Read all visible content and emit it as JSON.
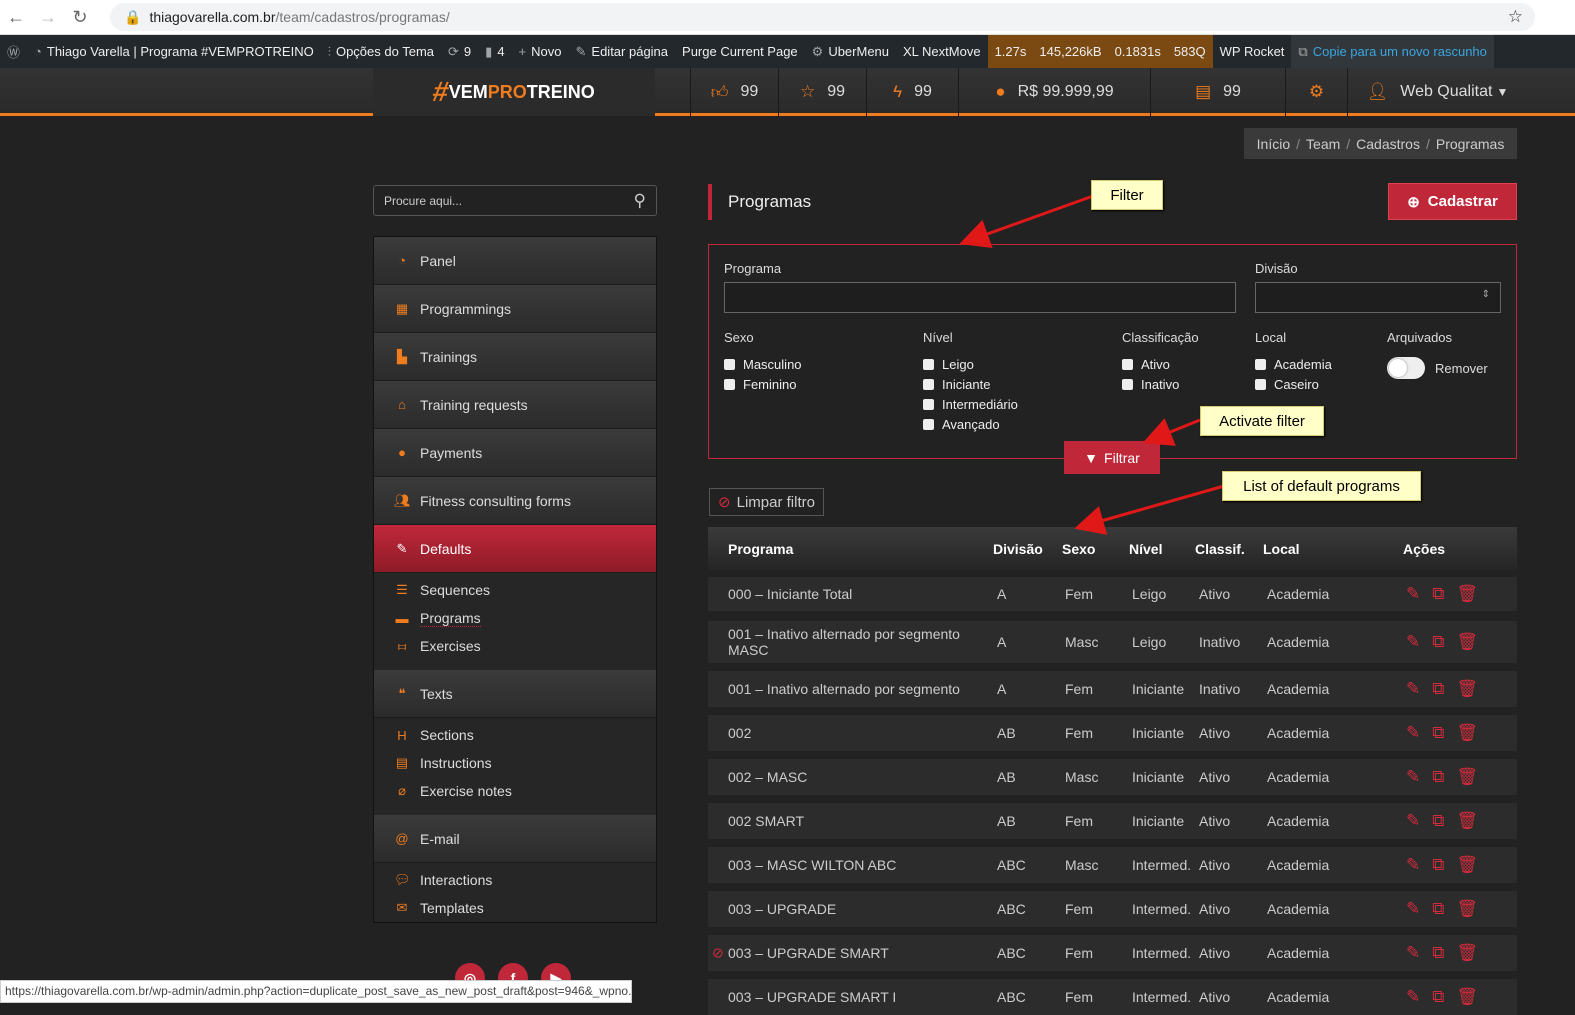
{
  "browser": {
    "url_host": "thiagovarella.com.br",
    "url_path": "/team/cadastros/programas/",
    "status_url": "https://thiagovarella.com.br/wp-admin/admin.php?action=duplicate_post_save_as_new_post_draft&post=946&_wpno..."
  },
  "adminbar": {
    "site": "Thiago Varella | Programa #VEMPROTREINO",
    "theme_options": "Opções do Tema",
    "updates": "9",
    "comments": "4",
    "new": "Novo",
    "edit": "Editar página",
    "purge": "Purge Current Page",
    "ubermenu": "UberMenu",
    "nextmove": "XL NextMove",
    "perf": [
      "1.27s",
      "145,226kB",
      "0.1831s",
      "583Q"
    ],
    "rocket": "WP Rocket",
    "copy": "Copie para um novo rascunho"
  },
  "header": {
    "logo_text": "#VEMPROTREINO",
    "likes": "99",
    "stars": "99",
    "bolts": "99",
    "money": "R$ 99.999,99",
    "docs": "99",
    "user": "Web Qualitat"
  },
  "breadcrumb": [
    "Início",
    "Team",
    "Cadastros",
    "Programas"
  ],
  "search": {
    "placeholder": "Procure aqui..."
  },
  "sidebar": {
    "items": [
      "Panel",
      "Programmings",
      "Trainings",
      "Training requests",
      "Payments",
      "Fitness consulting forms",
      "Defaults"
    ],
    "defaults_sub": [
      "Sequences",
      "Programs",
      "Exercises"
    ],
    "texts": "Texts",
    "texts_sub": [
      "Sections",
      "Instructions",
      "Exercise notes"
    ],
    "email": "E-mail",
    "email_sub": [
      "Interactions",
      "Templates"
    ]
  },
  "page": {
    "title": "Programas",
    "cadastrar": "Cadastrar"
  },
  "filter": {
    "programa_label": "Programa",
    "programa_value": "",
    "divisao_label": "Divisão",
    "sexo_label": "Sexo",
    "sexo": [
      "Masculino",
      "Feminino"
    ],
    "nivel_label": "Nível",
    "nivel": [
      "Leigo",
      "Iniciante",
      "Intermediário",
      "Avançado"
    ],
    "class_label": "Classificação",
    "class": [
      "Ativo",
      "Inativo"
    ],
    "local_label": "Local",
    "local": [
      "Academia",
      "Caseiro"
    ],
    "arch_label": "Arquivados",
    "arch_toggle": "Remover",
    "filtrar": "Filtrar",
    "limpar": "Limpar filtro"
  },
  "table": {
    "headers": [
      "Programa",
      "Divisão",
      "Sexo",
      "Nível",
      "Classif.",
      "Local",
      "Ações"
    ],
    "rows": [
      [
        "000 – Iniciante Total",
        "A",
        "Fem",
        "Leigo",
        "Ativo",
        "Academia"
      ],
      [
        "001 – Inativo alternado por segmento MASC",
        "A",
        "Masc",
        "Leigo",
        "Inativo",
        "Academia"
      ],
      [
        "001 – Inativo alternado por segmento",
        "A",
        "Fem",
        "Iniciante",
        "Inativo",
        "Academia"
      ],
      [
        "002",
        "AB",
        "Fem",
        "Iniciante",
        "Ativo",
        "Academia"
      ],
      [
        "002 – MASC",
        "AB",
        "Masc",
        "Iniciante",
        "Ativo",
        "Academia"
      ],
      [
        "002 SMART",
        "AB",
        "Fem",
        "Iniciante",
        "Ativo",
        "Academia"
      ],
      [
        "003 – MASC WILTON ABC",
        "ABC",
        "Masc",
        "Intermed.",
        "Ativo",
        "Academia"
      ],
      [
        "003 – UPGRADE",
        "ABC",
        "Fem",
        "Intermed.",
        "Ativo",
        "Academia"
      ],
      [
        "003 – UPGRADE SMART",
        "ABC",
        "Fem",
        "Intermed.",
        "Ativo",
        "Academia"
      ],
      [
        "003 – UPGRADE SMART I",
        "ABC",
        "Fem",
        "Intermed.",
        "Ativo",
        "Academia"
      ]
    ]
  },
  "annotations": {
    "filter": "Filter",
    "activate": "Activate filter",
    "list": "List of default programs"
  },
  "colors": {
    "accent": "#f07c1e",
    "brand_red": "#c0283a"
  }
}
